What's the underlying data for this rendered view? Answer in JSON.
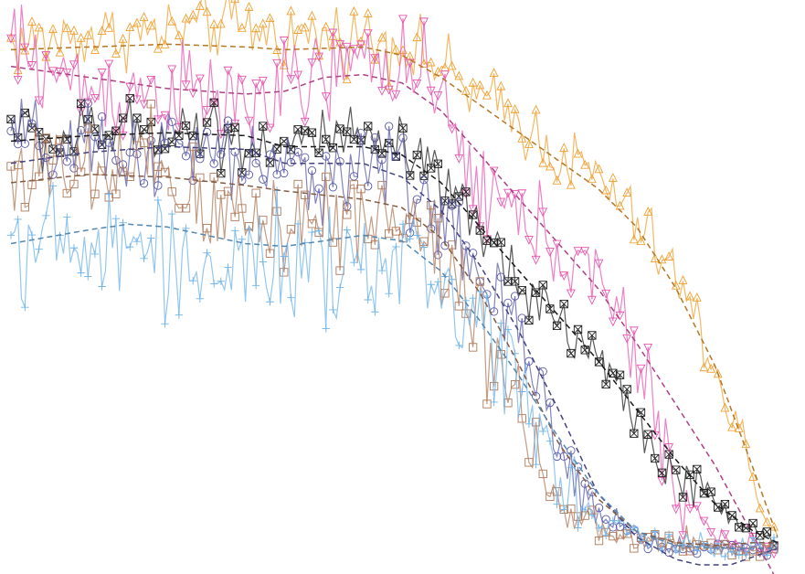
{
  "chart_data": {
    "type": "line",
    "title": "",
    "xlabel": "",
    "ylabel": "",
    "axes_visible": false,
    "grid": false,
    "legend": "none",
    "xlim": [
      0,
      1
    ],
    "ylim": [
      0,
      1
    ],
    "series": [
      {
        "color": "#f0a030",
        "marker": "triangle-up",
        "anchors": [
          [
            0.0,
            0.94
          ],
          [
            0.1,
            0.955
          ],
          [
            0.2,
            0.96
          ],
          [
            0.27,
            0.975
          ],
          [
            0.35,
            0.955
          ],
          [
            0.45,
            0.955
          ],
          [
            0.5,
            0.94
          ],
          [
            0.55,
            0.9
          ],
          [
            0.6,
            0.84
          ],
          [
            0.65,
            0.8
          ],
          [
            0.7,
            0.74
          ],
          [
            0.75,
            0.7
          ],
          [
            0.8,
            0.62
          ],
          [
            0.85,
            0.52
          ],
          [
            0.9,
            0.36
          ],
          [
            0.93,
            0.24
          ],
          [
            0.96,
            0.11
          ],
          [
            0.98,
            0.04
          ]
        ],
        "noise": 0.03,
        "trend": [
          [
            0.0,
            0.93
          ],
          [
            0.1,
            0.935
          ],
          [
            0.2,
            0.94
          ],
          [
            0.3,
            0.935
          ],
          [
            0.35,
            0.93
          ],
          [
            0.45,
            0.935
          ],
          [
            0.5,
            0.92
          ],
          [
            0.55,
            0.88
          ],
          [
            0.6,
            0.83
          ],
          [
            0.65,
            0.78
          ],
          [
            0.7,
            0.73
          ],
          [
            0.75,
            0.68
          ],
          [
            0.8,
            0.61
          ],
          [
            0.85,
            0.5
          ],
          [
            0.9,
            0.36
          ],
          [
            0.95,
            0.17
          ],
          [
            0.98,
            0.05
          ]
        ]
      },
      {
        "color": "#e855b0",
        "marker": "triangle-down",
        "anchors": [
          [
            0.0,
            0.94
          ],
          [
            0.05,
            0.89
          ],
          [
            0.1,
            0.86
          ],
          [
            0.15,
            0.85
          ],
          [
            0.2,
            0.86
          ],
          [
            0.25,
            0.84
          ],
          [
            0.3,
            0.83
          ],
          [
            0.35,
            0.85
          ],
          [
            0.4,
            0.88
          ],
          [
            0.45,
            0.9
          ],
          [
            0.5,
            0.92
          ],
          [
            0.55,
            0.82
          ],
          [
            0.6,
            0.68
          ],
          [
            0.65,
            0.62
          ],
          [
            0.7,
            0.58
          ],
          [
            0.75,
            0.5
          ],
          [
            0.8,
            0.38
          ],
          [
            0.85,
            0.14
          ],
          [
            0.9,
            0.05
          ],
          [
            0.95,
            0.03
          ],
          [
            0.98,
            0.03
          ]
        ],
        "noise": 0.045,
        "trend": [
          [
            0.0,
            0.9
          ],
          [
            0.1,
            0.88
          ],
          [
            0.2,
            0.86
          ],
          [
            0.3,
            0.85
          ],
          [
            0.35,
            0.855
          ],
          [
            0.4,
            0.88
          ],
          [
            0.45,
            0.885
          ],
          [
            0.5,
            0.87
          ],
          [
            0.55,
            0.82
          ],
          [
            0.6,
            0.74
          ],
          [
            0.65,
            0.66
          ],
          [
            0.7,
            0.58
          ],
          [
            0.75,
            0.5
          ],
          [
            0.8,
            0.4
          ],
          [
            0.85,
            0.29
          ],
          [
            0.9,
            0.18
          ],
          [
            0.95,
            0.05
          ],
          [
            0.98,
            -0.03
          ]
        ]
      },
      {
        "color": "#222222",
        "marker": "x-square",
        "anchors": [
          [
            0.0,
            0.8
          ],
          [
            0.05,
            0.76
          ],
          [
            0.1,
            0.78
          ],
          [
            0.15,
            0.78
          ],
          [
            0.2,
            0.79
          ],
          [
            0.25,
            0.79
          ],
          [
            0.3,
            0.76
          ],
          [
            0.35,
            0.76
          ],
          [
            0.4,
            0.77
          ],
          [
            0.45,
            0.76
          ],
          [
            0.5,
            0.75
          ],
          [
            0.55,
            0.68
          ],
          [
            0.6,
            0.6
          ],
          [
            0.65,
            0.52
          ],
          [
            0.7,
            0.44
          ],
          [
            0.75,
            0.38
          ],
          [
            0.8,
            0.26
          ],
          [
            0.85,
            0.16
          ],
          [
            0.9,
            0.11
          ],
          [
            0.95,
            0.06
          ],
          [
            0.98,
            0.04
          ]
        ],
        "noise": 0.028,
        "trend": [
          [
            0.0,
            0.765
          ],
          [
            0.1,
            0.775
          ],
          [
            0.2,
            0.78
          ],
          [
            0.3,
            0.775
          ],
          [
            0.35,
            0.755
          ],
          [
            0.45,
            0.755
          ],
          [
            0.5,
            0.74
          ],
          [
            0.55,
            0.69
          ],
          [
            0.6,
            0.61
          ],
          [
            0.65,
            0.53
          ],
          [
            0.7,
            0.45
          ],
          [
            0.75,
            0.37
          ],
          [
            0.8,
            0.28
          ],
          [
            0.85,
            0.19
          ],
          [
            0.9,
            0.11
          ],
          [
            0.95,
            0.06
          ],
          [
            0.98,
            0.04
          ]
        ]
      },
      {
        "color": "#5a5aa8",
        "marker": "circle",
        "anchors": [
          [
            0.0,
            0.78
          ],
          [
            0.05,
            0.74
          ],
          [
            0.1,
            0.74
          ],
          [
            0.15,
            0.74
          ],
          [
            0.2,
            0.75
          ],
          [
            0.25,
            0.74
          ],
          [
            0.3,
            0.73
          ],
          [
            0.35,
            0.7
          ],
          [
            0.4,
            0.71
          ],
          [
            0.45,
            0.72
          ],
          [
            0.5,
            0.72
          ],
          [
            0.55,
            0.62
          ],
          [
            0.6,
            0.52
          ],
          [
            0.65,
            0.4
          ],
          [
            0.7,
            0.22
          ],
          [
            0.75,
            0.1
          ],
          [
            0.8,
            0.05
          ],
          [
            0.85,
            0.03
          ],
          [
            0.9,
            0.03
          ],
          [
            0.95,
            0.03
          ],
          [
            0.98,
            0.03
          ]
        ],
        "noise": 0.04,
        "trend": [
          [
            0.0,
            0.725
          ],
          [
            0.1,
            0.745
          ],
          [
            0.2,
            0.755
          ],
          [
            0.3,
            0.75
          ],
          [
            0.35,
            0.725
          ],
          [
            0.45,
            0.725
          ],
          [
            0.5,
            0.7
          ],
          [
            0.55,
            0.64
          ],
          [
            0.6,
            0.54
          ],
          [
            0.65,
            0.42
          ],
          [
            0.7,
            0.28
          ],
          [
            0.75,
            0.13
          ],
          [
            0.8,
            0.05
          ],
          [
            0.85,
            0.01
          ],
          [
            0.88,
            0.0
          ],
          [
            0.92,
            0.0
          ],
          [
            0.96,
            0.02
          ],
          [
            0.98,
            0.03
          ]
        ]
      },
      {
        "color": "#b07a5a",
        "marker": "square",
        "anchors": [
          [
            0.0,
            0.72
          ],
          [
            0.05,
            0.7
          ],
          [
            0.1,
            0.7
          ],
          [
            0.15,
            0.7
          ],
          [
            0.2,
            0.71
          ],
          [
            0.25,
            0.62
          ],
          [
            0.3,
            0.64
          ],
          [
            0.35,
            0.62
          ],
          [
            0.4,
            0.63
          ],
          [
            0.45,
            0.64
          ],
          [
            0.5,
            0.63
          ],
          [
            0.55,
            0.56
          ],
          [
            0.6,
            0.44
          ],
          [
            0.65,
            0.3
          ],
          [
            0.7,
            0.1
          ],
          [
            0.75,
            0.06
          ],
          [
            0.8,
            0.04
          ],
          [
            0.85,
            0.04
          ],
          [
            0.9,
            0.03
          ],
          [
            0.95,
            0.03
          ],
          [
            0.98,
            0.03
          ]
        ],
        "noise": 0.05,
        "trend": [
          [
            0.0,
            0.69
          ],
          [
            0.1,
            0.705
          ],
          [
            0.2,
            0.7
          ],
          [
            0.3,
            0.685
          ],
          [
            0.35,
            0.675
          ],
          [
            0.45,
            0.66
          ],
          [
            0.5,
            0.645
          ],
          [
            0.55,
            0.59
          ],
          [
            0.6,
            0.49
          ],
          [
            0.65,
            0.36
          ],
          [
            0.7,
            0.22
          ],
          [
            0.75,
            0.12
          ],
          [
            0.8,
            0.06
          ],
          [
            0.85,
            0.04
          ],
          [
            0.9,
            0.035
          ],
          [
            0.95,
            0.04
          ],
          [
            0.98,
            0.04
          ]
        ]
      },
      {
        "color": "#6fb4ea",
        "marker": "plus",
        "anchors": [
          [
            0.0,
            0.6
          ],
          [
            0.05,
            0.58
          ],
          [
            0.1,
            0.56
          ],
          [
            0.15,
            0.58
          ],
          [
            0.2,
            0.55
          ],
          [
            0.25,
            0.54
          ],
          [
            0.3,
            0.53
          ],
          [
            0.35,
            0.55
          ],
          [
            0.4,
            0.52
          ],
          [
            0.45,
            0.53
          ],
          [
            0.5,
            0.56
          ],
          [
            0.55,
            0.5
          ],
          [
            0.6,
            0.44
          ],
          [
            0.65,
            0.34
          ],
          [
            0.7,
            0.18
          ],
          [
            0.75,
            0.08
          ],
          [
            0.8,
            0.05
          ],
          [
            0.85,
            0.04
          ],
          [
            0.9,
            0.03
          ],
          [
            0.95,
            0.03
          ],
          [
            0.98,
            0.03
          ]
        ],
        "noise": 0.05,
        "trend": [
          [
            0.0,
            0.58
          ],
          [
            0.1,
            0.605
          ],
          [
            0.15,
            0.615
          ],
          [
            0.2,
            0.61
          ],
          [
            0.3,
            0.58
          ],
          [
            0.35,
            0.575
          ],
          [
            0.4,
            0.585
          ],
          [
            0.45,
            0.595
          ],
          [
            0.5,
            0.585
          ],
          [
            0.55,
            0.53
          ],
          [
            0.6,
            0.44
          ],
          [
            0.65,
            0.34
          ],
          [
            0.7,
            0.23
          ],
          [
            0.75,
            0.13
          ],
          [
            0.8,
            0.06
          ],
          [
            0.85,
            0.035
          ],
          [
            0.9,
            0.03
          ],
          [
            0.95,
            0.03
          ],
          [
            0.98,
            0.03
          ]
        ]
      }
    ]
  }
}
